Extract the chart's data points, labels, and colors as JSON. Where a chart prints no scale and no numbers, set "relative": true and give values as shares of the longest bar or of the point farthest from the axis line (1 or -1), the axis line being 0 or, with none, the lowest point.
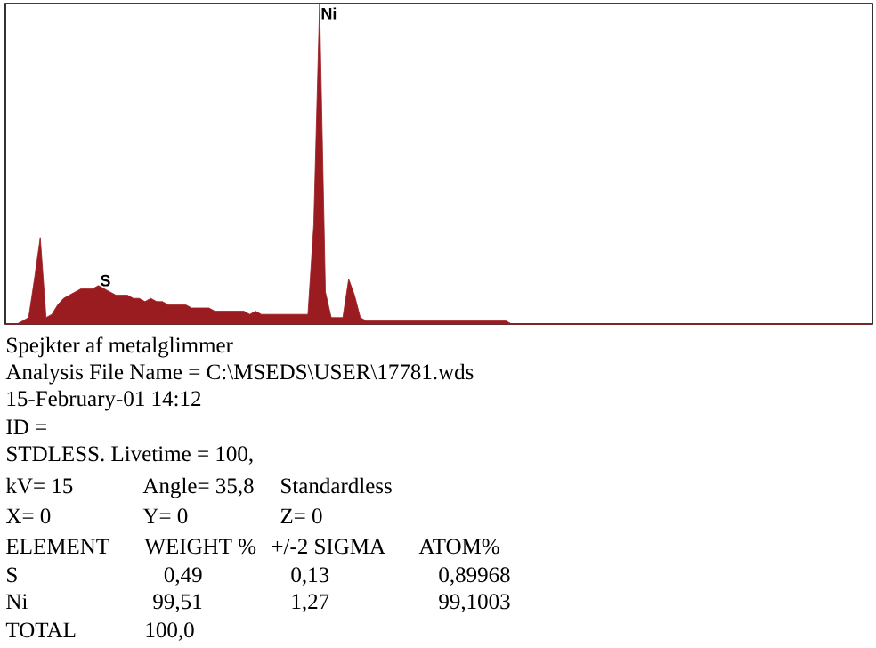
{
  "chart_data": {
    "type": "area",
    "relative": true,
    "color": "#9b1c20",
    "categories": [
      null,
      null,
      null,
      null,
      null,
      null,
      null,
      null,
      null,
      null,
      null,
      null,
      null,
      null,
      null,
      null,
      null,
      null,
      null,
      null,
      null,
      null,
      null,
      null,
      null,
      null,
      null,
      null,
      null,
      null,
      null,
      null,
      null,
      null,
      null,
      null,
      null,
      null,
      null,
      null,
      null,
      null,
      null,
      null,
      null,
      null,
      null,
      null,
      null,
      null,
      null,
      null,
      null,
      null,
      null,
      null,
      null,
      null,
      null,
      null,
      null,
      null,
      null,
      null,
      null,
      null,
      null,
      null,
      null,
      null,
      null,
      null,
      null,
      null,
      null,
      null,
      null,
      null,
      null,
      null,
      null,
      null,
      null,
      null,
      null,
      null,
      null,
      null,
      null,
      null,
      null,
      null,
      null,
      null,
      null,
      null,
      null,
      null,
      null,
      null,
      null,
      null,
      null,
      null,
      null,
      null,
      null,
      null,
      null,
      null,
      null,
      null,
      null,
      null,
      null,
      null,
      null,
      null,
      null,
      null,
      null,
      null,
      null,
      null,
      null,
      null,
      null,
      null,
      null,
      null,
      null,
      null,
      null,
      null,
      null,
      null,
      null,
      null,
      null,
      null,
      null,
      null,
      null,
      null,
      null,
      null,
      null,
      null,
      null,
      null
    ],
    "values": [
      0,
      0,
      0,
      0.01,
      0.02,
      0.14,
      0.27,
      0.02,
      0.03,
      0.06,
      0.08,
      0.09,
      0.1,
      0.11,
      0.11,
      0.11,
      0.12,
      0.11,
      0.1,
      0.09,
      0.09,
      0.09,
      0.08,
      0.08,
      0.07,
      0.08,
      0.07,
      0.07,
      0.06,
      0.06,
      0.06,
      0.06,
      0.05,
      0.05,
      0.05,
      0.05,
      0.04,
      0.04,
      0.04,
      0.04,
      0.04,
      0.04,
      0.03,
      0.04,
      0.03,
      0.03,
      0.03,
      0.03,
      0.03,
      0.03,
      0.03,
      0.03,
      0.03,
      0.31,
      1,
      0.1,
      0.02,
      0.02,
      0.02,
      0.14,
      0.09,
      0.02,
      0.01,
      0.01,
      0.01,
      0.01,
      0.01,
      0.01,
      0.01,
      0.01,
      0.01,
      0.01,
      0.01,
      0.01,
      0.01,
      0.01,
      0.01,
      0.01,
      0.01,
      0.01,
      0.01,
      0.01,
      0.01,
      0.01,
      0.01,
      0.01,
      0.01,
      0,
      0,
      0,
      0,
      0,
      0,
      0,
      0,
      0,
      0,
      0,
      0,
      0,
      0,
      0,
      0,
      0,
      0,
      0,
      0,
      0,
      0,
      0,
      0,
      0,
      0,
      0,
      0,
      0,
      0,
      0,
      0,
      0,
      0,
      0,
      0,
      0,
      0,
      0,
      0,
      0,
      0,
      0,
      0,
      0,
      0,
      0,
      0,
      0,
      0,
      0,
      0,
      0,
      0,
      0,
      0,
      0,
      0,
      0,
      0,
      0,
      0,
      0
    ],
    "annotations": [
      "Ni",
      "S",
      "Spejkter af metalglimmer",
      "Analysis File Name = C:\\MSEDS\\USER\\17781.wds",
      "15-February-01  14:12",
      "ID =",
      "STDLESS.  Livetime = 100,",
      "kV= 15",
      "Angle= 35,8",
      "Standardless",
      "X= 0",
      "Y= 0",
      "Z= 0",
      "ELEMENT",
      "WEIGHT %",
      "+/-2 SIGMA",
      "ATOM%",
      "S",
      "0,49",
      "0,13",
      "0,89968",
      "Ni",
      "99,51",
      "1,27",
      "99,1003",
      "TOTAL",
      "100,0"
    ]
  }
}
